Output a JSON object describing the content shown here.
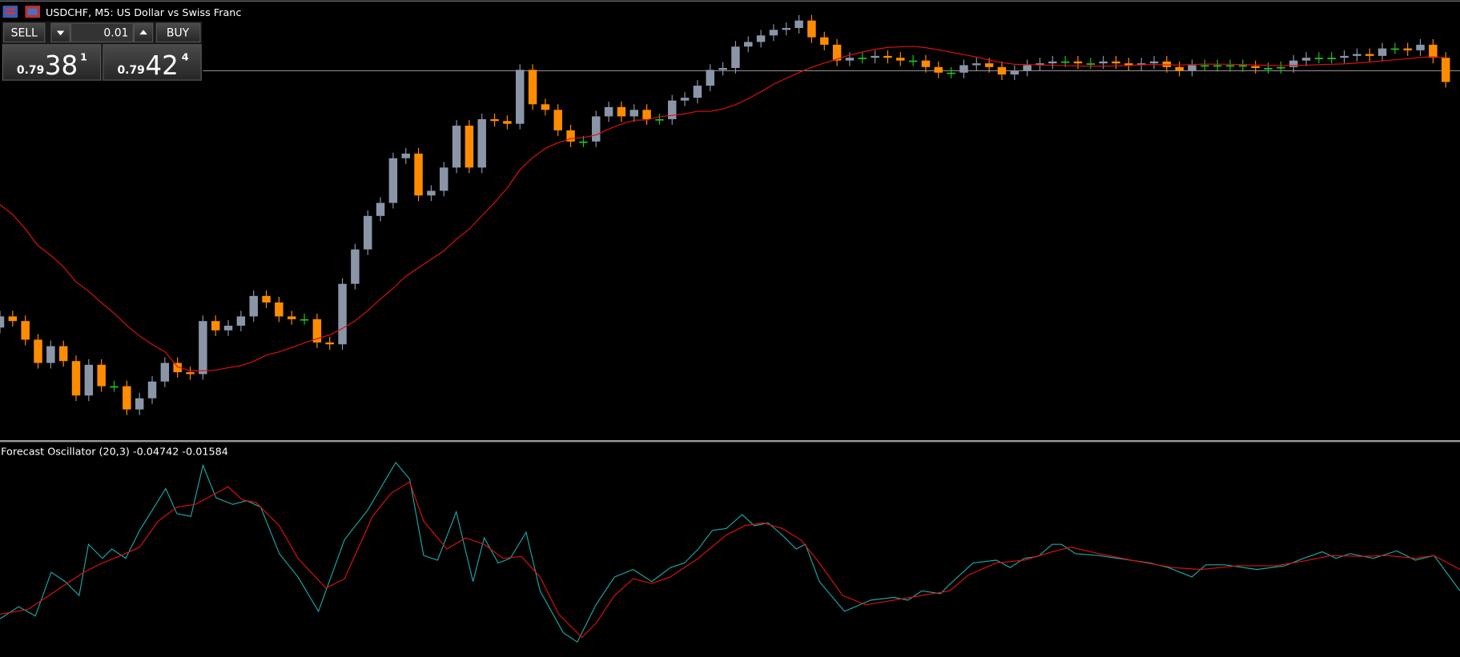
{
  "header": {
    "title": "USDCHF, M5:  US Dollar vs Swiss Franc"
  },
  "trade_panel": {
    "sell": "SELL",
    "volume": "0.01",
    "buy": "BUY",
    "bid": {
      "prefix": "0.79",
      "big": "38",
      "small": "1"
    },
    "ask": {
      "prefix": "0.79",
      "big": "42",
      "small": "4"
    }
  },
  "indicator": {
    "label": "Forecast Oscillator (20,3) -0.04742 -0.01584"
  }
}
